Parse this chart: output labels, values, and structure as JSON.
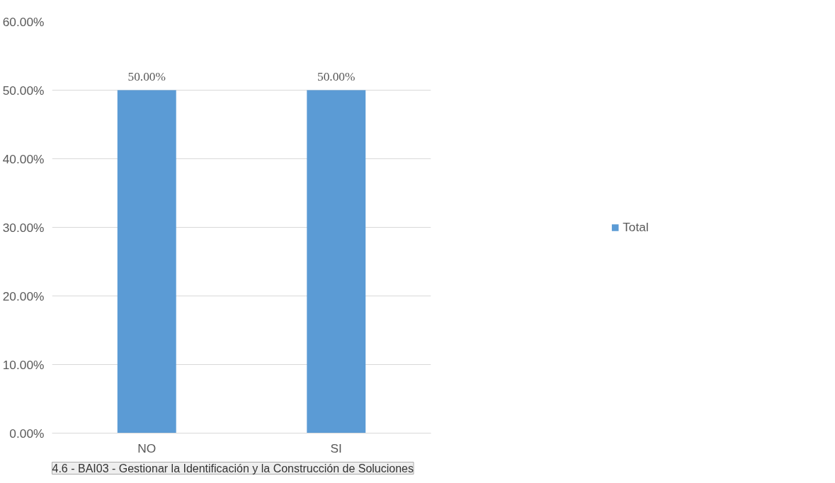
{
  "chart_data": {
    "type": "bar",
    "categories": [
      "NO",
      "SI"
    ],
    "series": [
      {
        "name": "Total",
        "color": "#5b9bd5",
        "values": [
          50,
          50
        ],
        "value_labels": [
          "50.00%",
          "50.00%"
        ]
      }
    ],
    "ylim": [
      0,
      60
    ],
    "yticks": [
      {
        "value": 0,
        "label": "0.00%"
      },
      {
        "value": 10,
        "label": "10.00%"
      },
      {
        "value": 20,
        "label": "20.00%"
      },
      {
        "value": 30,
        "label": "30.00%"
      },
      {
        "value": 40,
        "label": "40.00%"
      },
      {
        "value": 50,
        "label": "50.00%"
      },
      {
        "value": 60,
        "label": "60.00%"
      }
    ],
    "grid": "y",
    "legend": "right",
    "annotations": [
      "4.6 - BAI03 - Gestionar la Identificación y la Construcción de Soluciones"
    ]
  }
}
